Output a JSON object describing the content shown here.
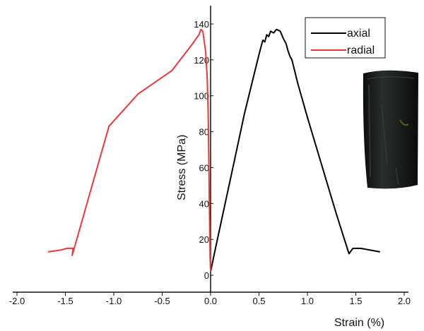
{
  "chart_data": {
    "type": "line",
    "xlabel": "Strain (%)",
    "ylabel": "Stress (MPa)",
    "xlim": [
      -2.0,
      2.0
    ],
    "ylim": [
      0,
      145
    ],
    "x_ticks": [
      "-2.0",
      "-1.5",
      "-1.0",
      "-0.5",
      "0.0",
      "0.5",
      "1.0",
      "1.5",
      "2.0"
    ],
    "y_ticks": [
      "0",
      "20",
      "40",
      "60",
      "80",
      "100",
      "120",
      "140"
    ],
    "grid": false,
    "legend_position": "top-right",
    "series": [
      {
        "name": "axial",
        "color": "#000000",
        "points": [
          [
            0.0,
            2
          ],
          [
            0.05,
            15
          ],
          [
            0.15,
            40
          ],
          [
            0.25,
            65
          ],
          [
            0.35,
            90
          ],
          [
            0.45,
            112
          ],
          [
            0.5,
            123
          ],
          [
            0.52,
            127
          ],
          [
            0.54,
            131
          ],
          [
            0.56,
            130
          ],
          [
            0.58,
            134
          ],
          [
            0.6,
            133
          ],
          [
            0.62,
            136
          ],
          [
            0.65,
            135
          ],
          [
            0.68,
            137
          ],
          [
            0.72,
            136
          ],
          [
            0.75,
            132
          ],
          [
            0.78,
            129
          ],
          [
            0.8,
            125
          ],
          [
            0.82,
            122
          ],
          [
            0.84,
            120
          ],
          [
            0.9,
            107
          ],
          [
            1.0,
            88
          ],
          [
            1.1,
            70
          ],
          [
            1.2,
            52
          ],
          [
            1.3,
            34
          ],
          [
            1.4,
            17
          ],
          [
            1.43,
            12
          ],
          [
            1.47,
            15
          ],
          [
            1.55,
            15
          ],
          [
            1.65,
            14
          ],
          [
            1.75,
            13
          ]
        ]
      },
      {
        "name": "radial",
        "color": "#e8393b",
        "points": [
          [
            -1.68,
            13
          ],
          [
            -1.55,
            14
          ],
          [
            -1.48,
            15
          ],
          [
            -1.42,
            15
          ],
          [
            -1.43,
            11
          ],
          [
            -1.05,
            83
          ],
          [
            -0.75,
            101
          ],
          [
            -0.4,
            114
          ],
          [
            -0.2,
            128
          ],
          [
            -0.12,
            134
          ],
          [
            -0.1,
            137
          ],
          [
            -0.08,
            136
          ],
          [
            -0.06,
            128
          ],
          [
            -0.05,
            124
          ],
          [
            -0.035,
            110
          ],
          [
            -0.025,
            90
          ],
          [
            -0.02,
            70
          ],
          [
            -0.015,
            50
          ],
          [
            -0.01,
            30
          ],
          [
            -0.005,
            10
          ],
          [
            0.0,
            2
          ]
        ]
      }
    ]
  },
  "specimen_photo": {
    "description_icon": "rock-core-specimen-icon",
    "color": "#1c1f1d"
  }
}
